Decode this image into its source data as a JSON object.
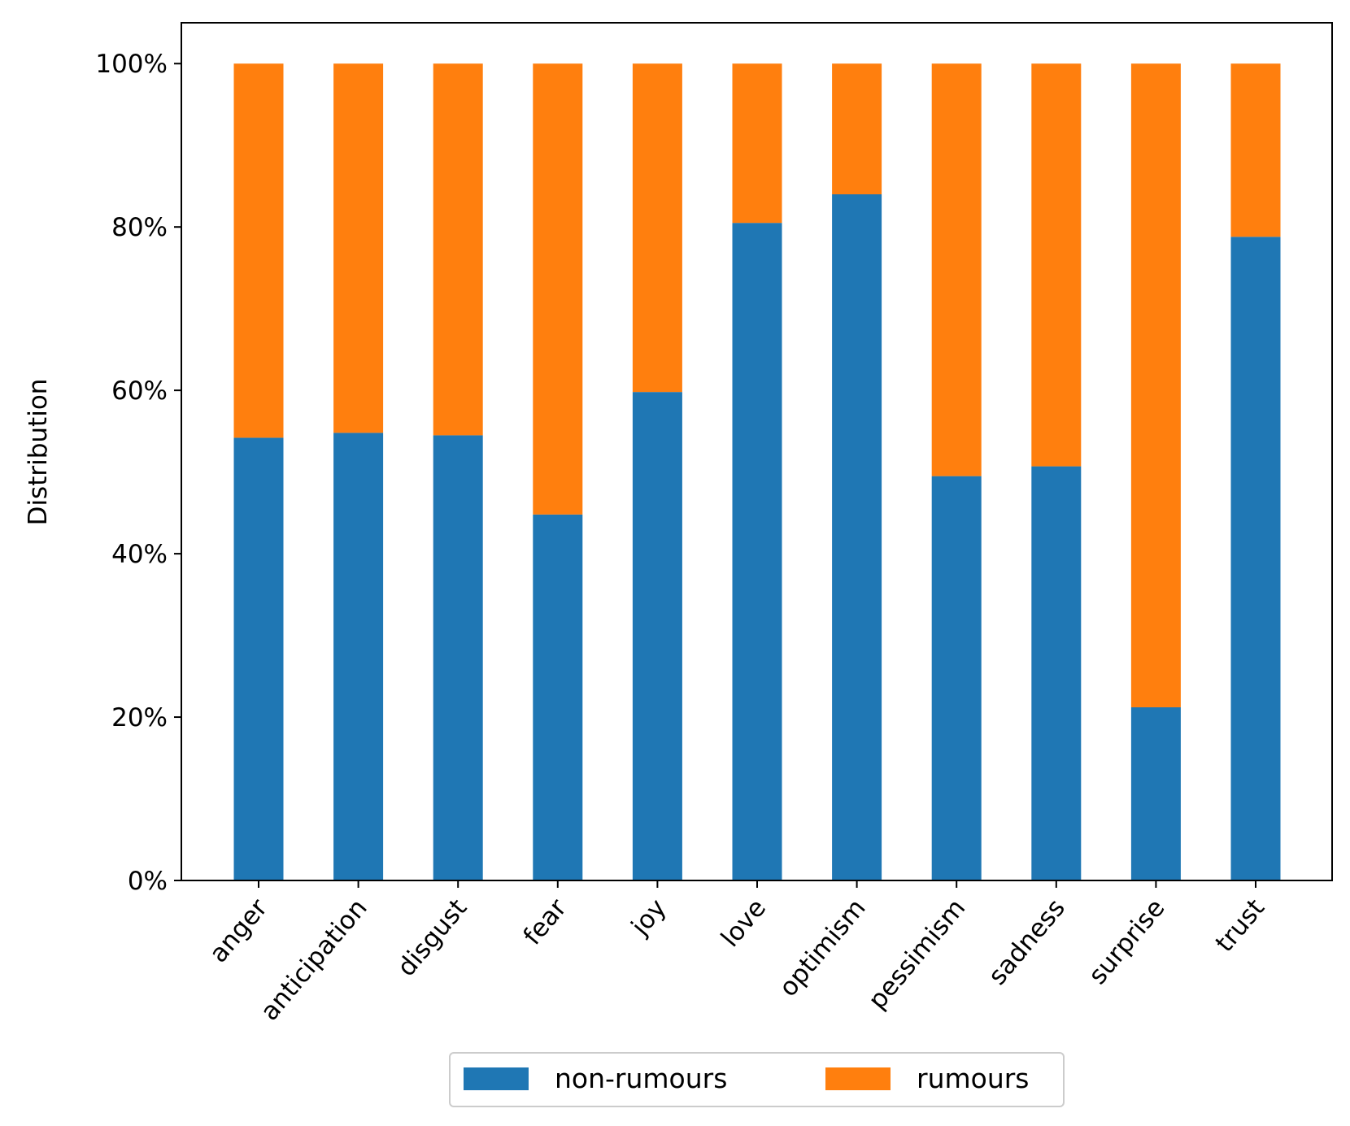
{
  "chart_data": {
    "type": "bar",
    "stacked": true,
    "title": "",
    "xlabel": "",
    "ylabel": "Distribution",
    "ylim": [
      0,
      105
    ],
    "yticks": [
      {
        "value": 0,
        "label": "0%"
      },
      {
        "value": 20,
        "label": "20%"
      },
      {
        "value": 40,
        "label": "40%"
      },
      {
        "value": 60,
        "label": "60%"
      },
      {
        "value": 80,
        "label": "80%"
      },
      {
        "value": 100,
        "label": "100%"
      }
    ],
    "categories": [
      "anger",
      "anticipation",
      "disgust",
      "fear",
      "joy",
      "love",
      "optimism",
      "pessimism",
      "sadness",
      "surprise",
      "trust"
    ],
    "series": [
      {
        "name": "non-rumours",
        "color": "#1f77b4",
        "values": [
          54.2,
          54.8,
          54.5,
          44.8,
          59.8,
          80.5,
          84.0,
          49.5,
          50.7,
          21.2,
          78.8
        ]
      },
      {
        "name": "rumours",
        "color": "#ff7f0e",
        "values": [
          45.8,
          45.2,
          45.5,
          55.2,
          40.2,
          19.5,
          16.0,
          50.5,
          49.3,
          78.8,
          21.2
        ]
      }
    ],
    "legend": {
      "position": "bottom-center",
      "columns": 2
    },
    "grid": false
  }
}
